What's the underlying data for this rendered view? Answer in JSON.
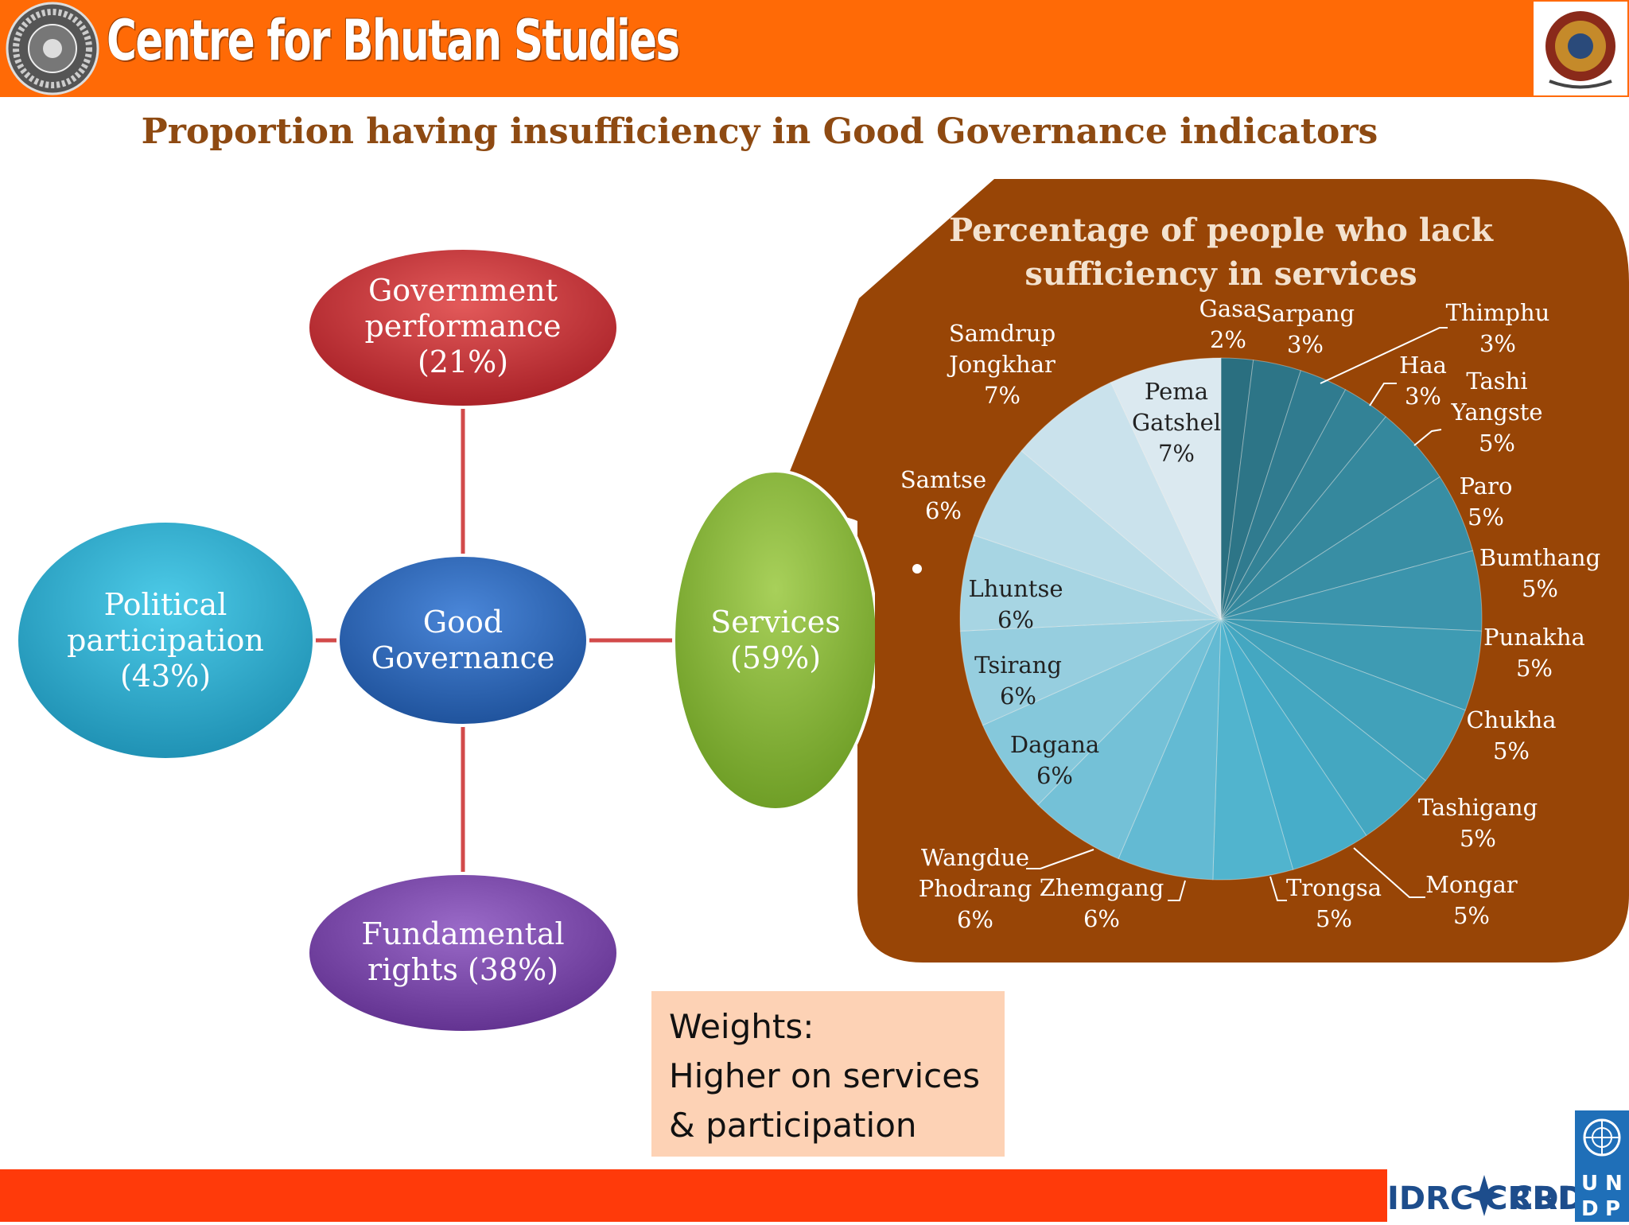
{
  "header": {
    "org_name": "Centre for Bhutan Studies",
    "bar_color": "#ff6a06"
  },
  "slide_title": "Proportion having insufficiency in Good Governance indicators",
  "diagram": {
    "center": {
      "line1": "Good",
      "line2": "Governance"
    },
    "top": {
      "line1": "Government",
      "line2": "performance",
      "line3": "(21%)"
    },
    "left": {
      "line1": "Political",
      "line2": "participation",
      "line3": "(43%)"
    },
    "bottom": {
      "line1": "Fundamental",
      "line2": "rights (38%)"
    },
    "right": {
      "line1": "Services",
      "line2": "(59%)"
    }
  },
  "chart_data": {
    "type": "pie",
    "title": "Percentage of people who lack sufficiency in services",
    "slices": [
      {
        "label": "Gasa",
        "value": 2
      },
      {
        "label": "Sarpang",
        "value": 3
      },
      {
        "label": "Thimphu",
        "value": 3
      },
      {
        "label": "Haa",
        "value": 3
      },
      {
        "label": "Tashi Yangste",
        "value": 5
      },
      {
        "label": "Paro",
        "value": 5
      },
      {
        "label": "Bumthang",
        "value": 5
      },
      {
        "label": "Punakha",
        "value": 5
      },
      {
        "label": "Chukha",
        "value": 5
      },
      {
        "label": "Tashigang",
        "value": 5
      },
      {
        "label": "Mongar",
        "value": 5
      },
      {
        "label": "Trongsa",
        "value": 5
      },
      {
        "label": "Zhemgang",
        "value": 6
      },
      {
        "label": "Wangdue Phodrang",
        "value": 6
      },
      {
        "label": "Dagana",
        "value": 6
      },
      {
        "label": "Tsirang",
        "value": 6
      },
      {
        "label": "Lhuntse",
        "value": 6
      },
      {
        "label": "Samtse",
        "value": 6
      },
      {
        "label": "Samdrup Jongkhar",
        "value": 7
      },
      {
        "label": "Pema Gatshel",
        "value": 7
      }
    ],
    "value_suffix": "%",
    "colors": {
      "panel": "#984506",
      "slice_start": "#2a6f80",
      "slice_mid": "#48b0cc",
      "slice_end": "#dbe9f0",
      "label_light": "#ffffff",
      "label_dark": "#222222"
    }
  },
  "weights": {
    "line1": "Weights:",
    "line2": "Higher on  services",
    "line3": "& participation"
  },
  "footer": {
    "bar_color": "#ff3a0a",
    "logos": "IDRC CRDI UNDP"
  }
}
